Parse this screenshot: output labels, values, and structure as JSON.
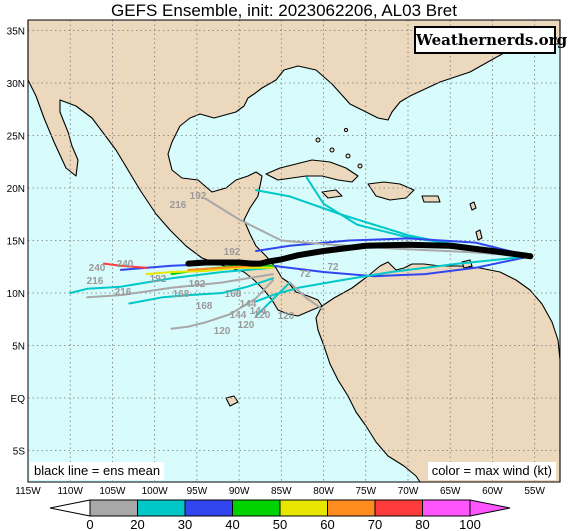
{
  "title": "GEFS Ensemble, init: 2023062206, AL03 Bret",
  "brand": "Weathernerds.org",
  "notes": {
    "mean": "black line = ens mean",
    "color": "color = max wind (kt)"
  },
  "axes": {
    "lon_labels": [
      "115W",
      "110W",
      "105W",
      "100W",
      "95W",
      "90W",
      "85W",
      "80W",
      "75W",
      "70W",
      "65W",
      "60W",
      "55W"
    ],
    "lat_labels": [
      "35N",
      "30N",
      "25N",
      "20N",
      "15N",
      "10N",
      "5N",
      "EQ",
      "5S"
    ]
  },
  "colors": {
    "ocean": "#d8fbfb",
    "land": "#ecd9bd",
    "coast": "#000000",
    "grid": "#777777",
    "mean_track": "#000000"
  },
  "colorbar": {
    "labels": [
      "0",
      "20",
      "30",
      "40",
      "50",
      "60",
      "70",
      "80",
      "100"
    ],
    "colors": [
      "#a8a8a8",
      "#00c8c8",
      "#3246f0",
      "#00d200",
      "#e6e600",
      "#ff8c1e",
      "#ff3c3c",
      "#ff55ff"
    ]
  },
  "hour_labels": [
    "240",
    "240",
    "216",
    "216",
    "192",
    "192",
    "168",
    "192",
    "168",
    "144",
    "168",
    "144",
    "144",
    "120",
    "120",
    "120",
    "120",
    "216",
    "192",
    "72",
    "72"
  ],
  "chart_data": {
    "type": "scatter",
    "x_range_lon": [
      -115,
      -52
    ],
    "y_range_lat": [
      -8,
      36
    ],
    "mean_track": {
      "lon": [
        -55.5,
        -60,
        -65,
        -70,
        -75,
        -80,
        -83,
        -85,
        -86.5,
        -87.5,
        -88.5,
        -90,
        -92,
        -94,
        -96
      ],
      "lat": [
        13.5,
        14.0,
        14.5,
        14.6,
        14.5,
        14.0,
        13.6,
        13.2,
        13.0,
        12.8,
        12.8,
        12.9,
        12.9,
        12.9,
        12.8
      ]
    },
    "members": [
      {
        "color": "#00c8c8",
        "lon": [
          -55.5,
          -62,
          -70,
          -78,
          -84,
          -88
        ],
        "lat": [
          13.5,
          14.2,
          15.5,
          17.5,
          19.2,
          19.8
        ]
      },
      {
        "color": "#00c8c8",
        "lon": [
          -55.5,
          -63,
          -70,
          -76,
          -80,
          -82
        ],
        "lat": [
          13.5,
          14.5,
          15.3,
          16.5,
          18.5,
          21.0
        ]
      },
      {
        "color": "#3246f0",
        "lon": [
          -55.5,
          -62,
          -70,
          -77,
          -84,
          -88
        ],
        "lat": [
          13.5,
          14.8,
          15.2,
          15.0,
          14.5,
          14.0
        ]
      },
      {
        "color": "#3246f0",
        "lon": [
          -55.5,
          -62,
          -68,
          -74,
          -80,
          -86
        ],
        "lat": [
          13.5,
          12.4,
          11.8,
          11.6,
          12.0,
          12.6
        ]
      },
      {
        "color": "#00c8c8",
        "lon": [
          -55.5,
          -64,
          -72,
          -78,
          -83,
          -86,
          -88
        ],
        "lat": [
          13.5,
          12.8,
          12.0,
          11.2,
          10.5,
          9.8,
          9.2
        ]
      },
      {
        "color": "#a8a8a8",
        "lon": [
          -55.5,
          -63,
          -71,
          -79,
          -85,
          -90,
          -94
        ],
        "lat": [
          13.5,
          13.9,
          14.2,
          14.6,
          15.0,
          17.0,
          19.0
        ]
      },
      {
        "color": "#00c8c8",
        "lon": [
          -86,
          -92,
          -98,
          -104,
          -108,
          -110
        ],
        "lat": [
          12.4,
          12.0,
          11.4,
          10.6,
          10.4,
          10.0
        ]
      },
      {
        "color": "#a8a8a8",
        "lon": [
          -86,
          -92,
          -98,
          -104,
          -108
        ],
        "lat": [
          11.8,
          11.0,
          10.5,
          9.8,
          9.6
        ]
      },
      {
        "color": "#3246f0",
        "lon": [
          -86,
          -92,
          -98,
          -104
        ],
        "lat": [
          12.9,
          12.8,
          12.6,
          12.2
        ]
      },
      {
        "color": "#00d200",
        "lon": [
          -86,
          -90,
          -94,
          -98
        ],
        "lat": [
          12.6,
          12.6,
          12.3,
          11.8
        ]
      },
      {
        "color": "#e6e600",
        "lon": [
          -86,
          -90,
          -94,
          -98,
          -101
        ],
        "lat": [
          12.4,
          12.4,
          12.1,
          12.0,
          11.8
        ]
      },
      {
        "color": "#ff8c1e",
        "lon": [
          -88,
          -92,
          -96
        ],
        "lat": [
          12.6,
          12.4,
          12.2
        ]
      },
      {
        "color": "#ff3c3c",
        "lon": [
          -101,
          -104,
          -106
        ],
        "lat": [
          12.4,
          12.6,
          12.8
        ]
      },
      {
        "color": "#00c8c8",
        "lon": [
          -86,
          -89,
          -92,
          -96,
          -99,
          -103
        ],
        "lat": [
          11.4,
          10.6,
          10.0,
          9.8,
          9.6,
          9.0
        ]
      },
      {
        "color": "#a8a8a8",
        "lon": [
          -86,
          -88,
          -91,
          -94,
          -96,
          -98
        ],
        "lat": [
          11.2,
          9.5,
          8.0,
          7.2,
          6.8,
          6.6
        ]
      },
      {
        "color": "#00c8c8",
        "lon": [
          -84,
          -86,
          -87,
          -88
        ],
        "lat": [
          11.0,
          9.4,
          8.6,
          7.8
        ]
      },
      {
        "color": "#a8a8a8",
        "lon": [
          -84,
          -82,
          -80
        ],
        "lat": [
          11.0,
          9.5,
          8.4
        ]
      }
    ]
  }
}
